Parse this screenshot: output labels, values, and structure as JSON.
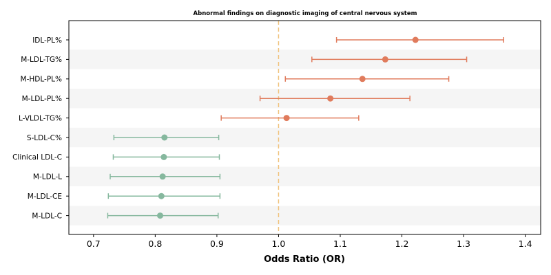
{
  "chart_data": {
    "type": "forest",
    "title": "Abnormal findings on diagnostic imaging of central nervous system",
    "xlabel": "Odds Ratio (OR)",
    "ylabel": "",
    "xlim": [
      0.66,
      1.425
    ],
    "xticks": [
      "0.7",
      "0.8",
      "0.9",
      "1.0",
      "1.1",
      "1.2",
      "1.3",
      "1.4"
    ],
    "reference_line": 1.0,
    "colors": {
      "risk": "#e07b5c",
      "protective": "#86b89e",
      "reference": "#f0c27b",
      "band": "#f5f5f5"
    },
    "rows": [
      {
        "label": "IDL-PL%",
        "or": 1.222,
        "lower": 1.094,
        "upper": 1.365,
        "group": "risk"
      },
      {
        "label": "M-LDL-TG%",
        "or": 1.173,
        "lower": 1.054,
        "upper": 1.305,
        "group": "risk"
      },
      {
        "label": "M-HDL-PL%",
        "or": 1.136,
        "lower": 1.011,
        "upper": 1.276,
        "group": "risk"
      },
      {
        "label": "M-LDL-PL%",
        "or": 1.084,
        "lower": 0.97,
        "upper": 1.213,
        "group": "risk"
      },
      {
        "label": "L-VLDL-TG%",
        "or": 1.013,
        "lower": 0.907,
        "upper": 1.13,
        "group": "risk"
      },
      {
        "label": "S-LDL-C%",
        "or": 0.815,
        "lower": 0.733,
        "upper": 0.903,
        "group": "protective"
      },
      {
        "label": "Clinical LDL-C",
        "or": 0.814,
        "lower": 0.732,
        "upper": 0.904,
        "group": "protective"
      },
      {
        "label": "M-LDL-L",
        "or": 0.812,
        "lower": 0.727,
        "upper": 0.905,
        "group": "protective"
      },
      {
        "label": "M-LDL-CE",
        "or": 0.81,
        "lower": 0.724,
        "upper": 0.905,
        "group": "protective"
      },
      {
        "label": "M-LDL-C",
        "or": 0.808,
        "lower": 0.723,
        "upper": 0.902,
        "group": "protective"
      }
    ]
  }
}
